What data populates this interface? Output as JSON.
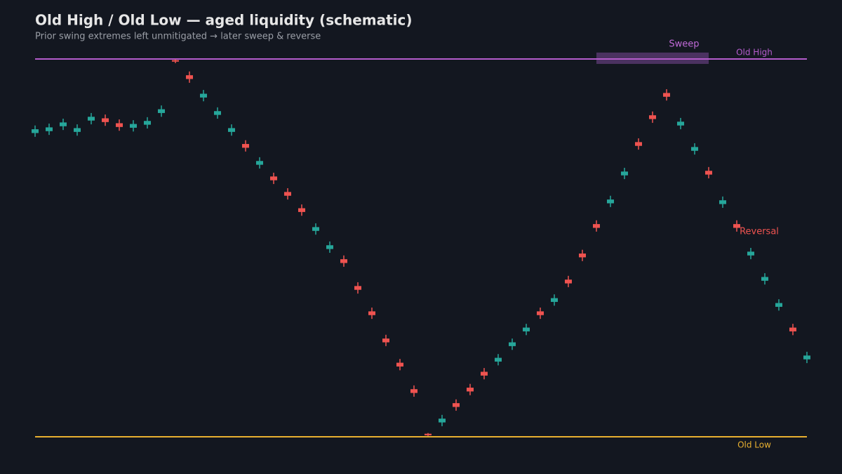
{
  "chart_data": {
    "type": "candlestick",
    "title": "Old High / Old Low — aged liquidity (schematic)",
    "subtitle": "Prior swing extremes left unmitigated → later sweep & reverse",
    "categories": [
      null,
      null,
      null,
      null,
      null,
      null,
      null,
      null,
      null,
      null,
      null,
      null,
      null,
      null,
      null,
      null,
      null,
      null,
      null,
      null,
      null,
      null,
      null,
      null,
      null,
      null,
      null,
      null,
      null,
      null,
      null,
      null,
      null,
      null,
      null,
      null,
      null,
      null,
      null,
      null,
      null,
      null,
      null,
      null,
      null,
      null,
      null,
      null,
      null,
      null,
      null,
      null,
      null,
      null,
      null,
      null
    ],
    "open": [
      80.4,
      80.9,
      82.2,
      80.7,
      83.7,
      84.3,
      83.0,
      81.8,
      82.6,
      85.7,
      99.7,
      95.7,
      89.8,
      85.2,
      80.7,
      77.5,
      72.0,
      68.9,
      64.8,
      60.5,
      54.5,
      49.7,
      47.0,
      39.9,
      33.2,
      26.0,
      19.6,
      12.6,
      0.8,
      3.8,
      8.9,
      13.0,
      17.2,
      19.9,
      24.0,
      27.9,
      33.2,
      35.7,
      41.6,
      48.5,
      56.3,
      61.8,
      69.2,
      78.0,
      85.1,
      91.0,
      82.4,
      75.7,
      70.4,
      61.6,
      56.3,
      48.0,
      41.3,
      34.4,
      28.9,
      20.5
    ],
    "high": [
      82.4,
      82.9,
      84.2,
      82.7,
      85.7,
      85.3,
      84.0,
      83.8,
      84.6,
      87.7,
      99.9,
      96.7,
      91.8,
      87.2,
      82.7,
      78.5,
      74.0,
      69.9,
      65.8,
      61.5,
      56.5,
      51.7,
      48.0,
      40.9,
      34.2,
      27.0,
      20.6,
      13.6,
      1.0,
      5.8,
      9.9,
      14.0,
      18.2,
      21.9,
      26.0,
      29.9,
      34.2,
      37.7,
      42.6,
      49.5,
      57.3,
      63.8,
      71.2,
      79.0,
      86.1,
      92.0,
      84.4,
      77.7,
      71.4,
      63.6,
      57.3,
      50.0,
      43.3,
      36.4,
      29.9,
      22.5
    ],
    "low": [
      79.4,
      79.9,
      81.2,
      79.7,
      82.7,
      82.3,
      81.0,
      80.8,
      81.6,
      84.7,
      98.9,
      93.7,
      88.8,
      84.2,
      79.7,
      75.5,
      71.0,
      66.9,
      62.8,
      58.5,
      53.5,
      48.7,
      45.0,
      37.9,
      31.2,
      24.0,
      17.6,
      10.6,
      0.2,
      2.8,
      6.9,
      11.0,
      15.2,
      18.9,
      23.0,
      26.9,
      31.2,
      34.7,
      39.6,
      46.5,
      54.3,
      60.8,
      68.2,
      76.0,
      83.1,
      89.0,
      81.4,
      74.7,
      68.4,
      60.6,
      54.3,
      47.0,
      40.3,
      33.4,
      26.9,
      19.5
    ],
    "close": [
      81.4,
      81.9,
      83.2,
      81.7,
      84.7,
      83.3,
      82.0,
      82.8,
      83.6,
      86.7,
      99.3,
      94.7,
      90.8,
      86.2,
      81.7,
      76.5,
      73.0,
      67.9,
      63.8,
      59.5,
      55.5,
      50.7,
      46.0,
      38.9,
      32.2,
      25.0,
      18.6,
      11.6,
      0.4,
      4.8,
      7.9,
      12.0,
      16.2,
      20.9,
      25.0,
      28.9,
      32.2,
      36.7,
      40.6,
      47.5,
      55.3,
      62.8,
      70.2,
      77.0,
      84.1,
      90.0,
      83.4,
      76.7,
      69.4,
      62.6,
      55.3,
      49.0,
      42.3,
      35.4,
      27.9,
      21.5
    ],
    "up_color": "#26a69a",
    "down_color": "#ef5350",
    "ylim": [
      0,
      100
    ],
    "levels": [
      {
        "label": "Old High",
        "value": 100,
        "color": "#b45ccc"
      },
      {
        "label": "Old Low",
        "value": 0,
        "color": "#e8b030"
      }
    ],
    "sweep": {
      "label": "Sweep",
      "start": 40,
      "end": 48,
      "low": 98.7,
      "high": 101.7,
      "color": "#5a3a72"
    },
    "annotation": {
      "text": "Reversal",
      "color": "#ef5350"
    }
  }
}
